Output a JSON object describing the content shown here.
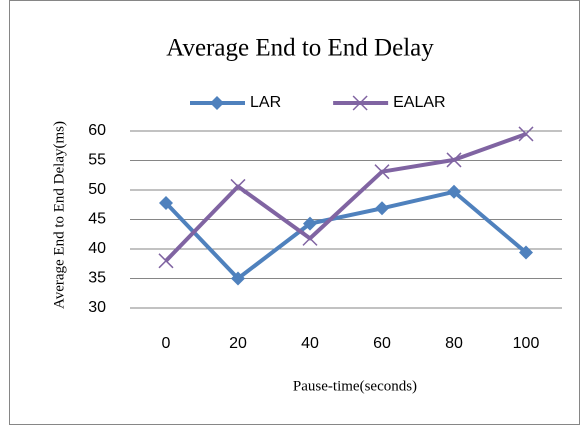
{
  "chart_data": {
    "type": "line",
    "title": "Average End to End Delay",
    "x_label": "Pause-time(seconds)",
    "y_label": "Average End to End Delay(ms)",
    "categories": [
      0,
      20,
      40,
      60,
      80,
      100
    ],
    "series": [
      {
        "name": "LAR",
        "color": "#4f81bd",
        "marker": "diamond",
        "values": [
          47.8,
          35,
          44.3,
          46.9,
          49.7,
          39.4
        ]
      },
      {
        "name": "EALAR",
        "color": "#8064a2",
        "marker": "x",
        "values": [
          38,
          50.6,
          41.8,
          53.1,
          55.1,
          59.5
        ]
      }
    ],
    "ylim": [
      30,
      60
    ],
    "yticks": [
      30,
      35,
      40,
      45,
      50,
      55,
      60
    ],
    "grid": true,
    "legend": "top"
  }
}
